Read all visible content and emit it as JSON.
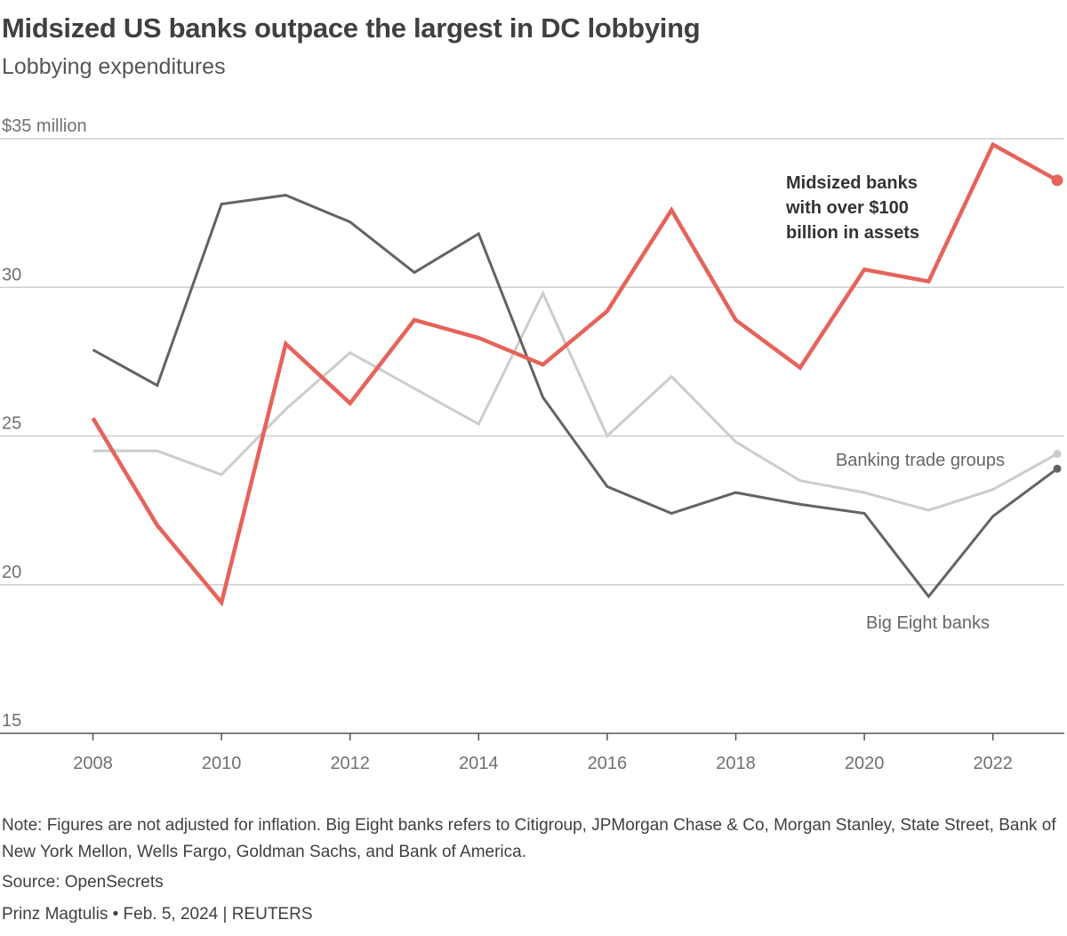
{
  "header": {
    "title": "Midsized US banks outpace the largest in DC lobbying",
    "subtitle": "Lobbying expenditures"
  },
  "chart_data": {
    "type": "line",
    "title": "Midsized US banks outpace the largest in DC lobbying",
    "subtitle": "Lobbying expenditures",
    "xlabel": "",
    "ylabel": "",
    "x": [
      2008,
      2009,
      2010,
      2011,
      2012,
      2013,
      2014,
      2015,
      2016,
      2017,
      2018,
      2019,
      2020,
      2021,
      2022,
      2023
    ],
    "xlim": [
      2007,
      2023
    ],
    "ylim": [
      15,
      35
    ],
    "x_ticks": [
      "2008",
      "2010",
      "2012",
      "2014",
      "2016",
      "2018",
      "2020",
      "2022"
    ],
    "y_ticks": [
      {
        "value": 35,
        "label": "$35 million"
      },
      {
        "value": 30,
        "label": "30"
      },
      {
        "value": 25,
        "label": "25"
      },
      {
        "value": 20,
        "label": "20"
      },
      {
        "value": 15,
        "label": "15"
      }
    ],
    "grid": true,
    "series": [
      {
        "name": "Banking trade groups",
        "color": "#cccccc",
        "values": [
          24.5,
          24.5,
          23.7,
          25.9,
          27.8,
          26.6,
          25.4,
          29.8,
          25.0,
          27.0,
          24.8,
          23.5,
          23.1,
          22.5,
          23.2,
          24.4
        ]
      },
      {
        "name": "Big Eight banks",
        "color": "#636363",
        "values": [
          27.9,
          26.7,
          32.8,
          33.1,
          32.2,
          30.5,
          31.8,
          26.3,
          23.3,
          22.4,
          23.1,
          22.7,
          22.4,
          19.6,
          22.3,
          23.9
        ]
      },
      {
        "name": "Midsized banks with over $100 billion in assets",
        "color": "#e5635a",
        "values": [
          25.6,
          22.0,
          19.4,
          28.1,
          26.1,
          28.9,
          28.3,
          27.4,
          29.2,
          32.6,
          28.9,
          27.3,
          30.6,
          30.2,
          34.8,
          33.6
        ]
      }
    ],
    "annotations": {
      "midsized": [
        "Midsized banks",
        "with over $100",
        "billion in assets"
      ],
      "trade": "Banking trade groups",
      "big_eight": "Big Eight banks"
    }
  },
  "footer": {
    "note": "Note: Figures are not adjusted for inflation. Big Eight banks refers to Citigroup, JPMorgan Chase & Co, Morgan Stanley, State Street, Bank of New York Mellon, Wells Fargo, Goldman Sachs, and Bank of America.",
    "source": "Source: OpenSecrets",
    "credit": "Prinz Magtulis • Feb. 5, 2024 | REUTERS"
  }
}
